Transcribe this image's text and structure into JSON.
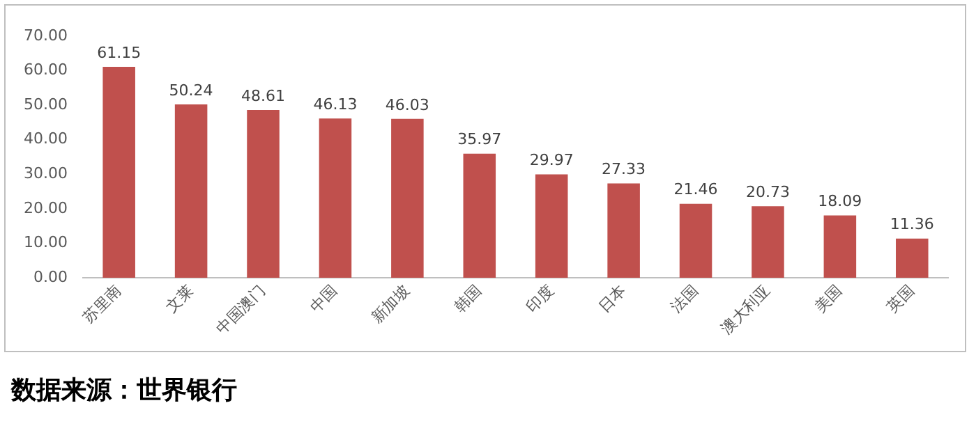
{
  "chart_data": {
    "type": "bar",
    "categories": [
      "苏里南",
      "文莱",
      "中国澳门",
      "中国",
      "新加坡",
      "韩国",
      "印度",
      "日本",
      "法国",
      "澳大利亚",
      "美国",
      "英国"
    ],
    "values": [
      61.15,
      50.24,
      48.61,
      46.13,
      46.03,
      35.97,
      29.97,
      27.33,
      21.46,
      20.73,
      18.09,
      11.36
    ],
    "color": "#c0504d",
    "data_labels": true,
    "grid": false,
    "legend": false,
    "ylim": [
      0,
      70
    ],
    "yticks": [
      {
        "value": 0,
        "label": "0.00"
      },
      {
        "value": 10,
        "label": "10.00"
      },
      {
        "value": 20,
        "label": "20.00"
      },
      {
        "value": 30,
        "label": "30.00"
      },
      {
        "value": 40,
        "label": "40.00"
      },
      {
        "value": 50,
        "label": "50.00"
      },
      {
        "value": 60,
        "label": "60.00"
      },
      {
        "value": 70,
        "label": "70.00"
      }
    ],
    "annotations": [
      "数据来源：世界银行"
    ]
  }
}
